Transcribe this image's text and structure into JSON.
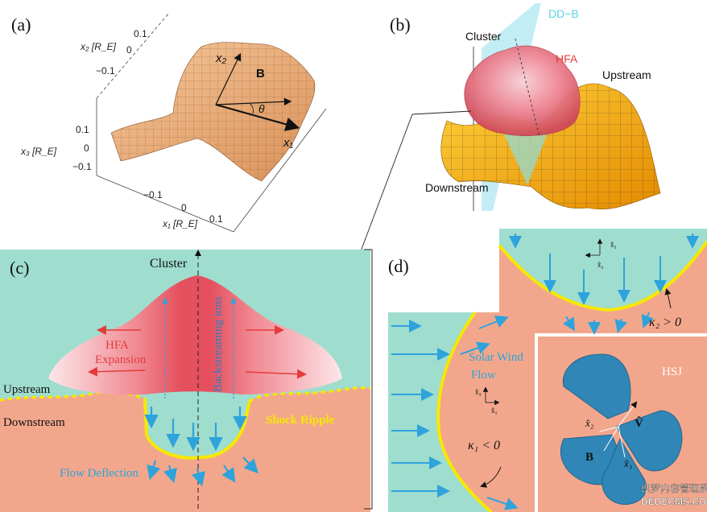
{
  "colors": {
    "teal": "#9fddcf",
    "salmon": "#f2a78c",
    "yellow": "#f7e800",
    "arrow_blue": "#2ea3dc",
    "red": "#e53b3b",
    "hsj_blue": "#2f86b7",
    "dd_b_cyan": "#5ad6e4",
    "hfa_red": "#e63d3d",
    "surface": "#e9a463",
    "surface_b": "#f3a000"
  },
  "panel_a": {
    "label": "(a)",
    "axis_x2": "x₂ [R_E]",
    "axis_x3": "x₃ [R_E]",
    "axis_x1": "x₁ [R_E]",
    "x2_ticks": [
      "0.1",
      "0",
      "−0.1"
    ],
    "x3_ticks": [
      "0.1",
      "0",
      "−0.1"
    ],
    "x1_ticks": [
      "−0.1",
      "0",
      "0.1"
    ],
    "vec_x2": "x₂",
    "vec_B": "B",
    "vec_theta": "θ",
    "vec_x1": "x₁"
  },
  "panel_b": {
    "label": "(b)",
    "dd_b": "DD−B",
    "cluster": "Cluster",
    "hfa": "HFA",
    "upstream": "Upstream",
    "downstream": "Downstream"
  },
  "panel_c": {
    "label": "(c)",
    "cluster": "Cluster",
    "hfa_line1": "HFA",
    "hfa_line2": "Expansion",
    "backstreaming": "Backstreaming ions",
    "upstream": "Upstream",
    "downstream": "Downstream",
    "shock_ripple": "Shock Ripple",
    "flow_deflection": "Flow Deflection"
  },
  "panel_d": {
    "label": "(d)",
    "solar_wind_line1": "Solar Wind",
    "solar_wind_line2": "Flow",
    "hsj": "HSJ",
    "kappa2": "κ₂ > 0",
    "kappa1": "κ₁ < 0",
    "x3_hat": "x̂₃",
    "x2_hat": "x̂₂",
    "x1_hat": "x̂₁",
    "vec_V": "V̂",
    "vec_x2": "x̂₂",
    "vec_B": "B",
    "vec_x1": "x̂₁"
  },
  "watermark": {
    "line1": "织梦内容管理系统",
    "line2": "DEDECMS.COM"
  }
}
